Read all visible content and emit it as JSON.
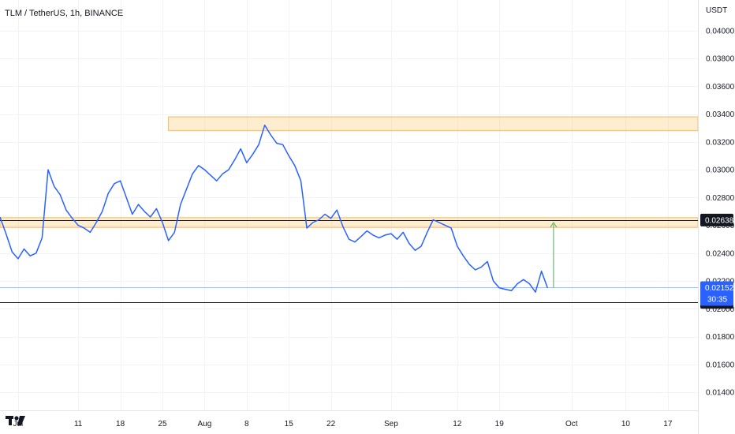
{
  "header": {
    "title": "TLM / TetherUS, 1h, BINANCE"
  },
  "chart_data": {
    "type": "line",
    "title": "TLM / TetherUS, 1h, BINANCE",
    "xlabel": "",
    "ylabel": "USDT",
    "ylim": [
      0.0127,
      0.0422
    ],
    "grid": true,
    "x_ticks": [
      "Jul",
      "11",
      "18",
      "25",
      "Aug",
      "8",
      "15",
      "22",
      "Sep",
      "12",
      "19",
      "Oct",
      "10",
      "17"
    ],
    "y_ticks": [
      "0.04000",
      "0.03800",
      "0.03600",
      "0.03400",
      "0.03200",
      "0.03000",
      "0.02800",
      "0.02600",
      "0.02400",
      "0.02200",
      "0.02000",
      "0.01800",
      "0.01600",
      "0.01400"
    ],
    "y_tick_values": [
      0.04,
      0.038,
      0.036,
      0.034,
      0.032,
      0.03,
      0.028,
      0.026,
      0.024,
      0.022,
      0.02,
      0.018,
      0.016,
      0.014
    ],
    "series": [
      {
        "name": "TLM/USDT",
        "color": "#2962ff",
        "x": [
          "2022-06-28",
          "2022-06-29",
          "2022-06-30",
          "2022-07-01",
          "2022-07-02",
          "2022-07-03",
          "2022-07-04",
          "2022-07-05",
          "2022-07-06",
          "2022-07-07",
          "2022-07-08",
          "2022-07-09",
          "2022-07-10",
          "2022-07-11",
          "2022-07-12",
          "2022-07-13",
          "2022-07-14",
          "2022-07-15",
          "2022-07-16",
          "2022-07-17",
          "2022-07-18",
          "2022-07-19",
          "2022-07-20",
          "2022-07-21",
          "2022-07-22",
          "2022-07-23",
          "2022-07-24",
          "2022-07-25",
          "2022-07-26",
          "2022-07-27",
          "2022-07-28",
          "2022-07-29",
          "2022-07-30",
          "2022-07-31",
          "2022-08-01",
          "2022-08-02",
          "2022-08-03",
          "2022-08-04",
          "2022-08-05",
          "2022-08-06",
          "2022-08-07",
          "2022-08-08",
          "2022-08-09",
          "2022-08-10",
          "2022-08-11",
          "2022-08-12",
          "2022-08-13",
          "2022-08-14",
          "2022-08-15",
          "2022-08-16",
          "2022-08-17",
          "2022-08-18",
          "2022-08-19",
          "2022-08-20",
          "2022-08-21",
          "2022-08-22",
          "2022-08-23",
          "2022-08-24",
          "2022-08-25",
          "2022-08-26",
          "2022-08-27",
          "2022-08-28",
          "2022-08-29",
          "2022-08-30",
          "2022-08-31",
          "2022-09-01",
          "2022-09-02",
          "2022-09-03",
          "2022-09-04",
          "2022-09-05",
          "2022-09-06",
          "2022-09-07",
          "2022-09-08",
          "2022-09-09",
          "2022-09-10",
          "2022-09-11",
          "2022-09-12",
          "2022-09-13",
          "2022-09-14",
          "2022-09-15",
          "2022-09-16",
          "2022-09-17",
          "2022-09-18",
          "2022-09-19",
          "2022-09-20",
          "2022-09-21",
          "2022-09-22",
          "2022-09-23",
          "2022-09-24",
          "2022-09-25",
          "2022-09-26",
          "2022-09-27"
        ],
        "values": [
          0.0266,
          0.0254,
          0.0241,
          0.0236,
          0.0243,
          0.0238,
          0.024,
          0.0251,
          0.03,
          0.0288,
          0.0282,
          0.0271,
          0.0265,
          0.026,
          0.0258,
          0.0255,
          0.0262,
          0.027,
          0.0283,
          0.029,
          0.0292,
          0.028,
          0.0268,
          0.0275,
          0.027,
          0.0266,
          0.0272,
          0.0262,
          0.0249,
          0.0255,
          0.0275,
          0.0286,
          0.0297,
          0.0303,
          0.03,
          0.0296,
          0.0292,
          0.0297,
          0.03,
          0.0307,
          0.0315,
          0.0305,
          0.0311,
          0.0318,
          0.0332,
          0.0325,
          0.0319,
          0.0318,
          0.031,
          0.0303,
          0.0292,
          0.0258,
          0.0262,
          0.0264,
          0.0268,
          0.0265,
          0.0271,
          0.0259,
          0.025,
          0.0248,
          0.0252,
          0.0256,
          0.0253,
          0.0251,
          0.0253,
          0.0254,
          0.025,
          0.0255,
          0.0247,
          0.0242,
          0.0245,
          0.0255,
          0.0264,
          0.0262,
          0.026,
          0.0258,
          0.0245,
          0.0238,
          0.0232,
          0.0228,
          0.023,
          0.0234,
          0.022,
          0.0215,
          0.0214,
          0.0213,
          0.0218,
          0.0221,
          0.0218,
          0.0212,
          0.0227,
          0.0215
        ]
      }
    ],
    "zones": [
      {
        "name": "resistance-zone-upper",
        "y_low": 0.0328,
        "y_high": 0.0338,
        "x_start": "2022-07-26",
        "x_end": "2022-10-22",
        "color": "#ffb74d"
      },
      {
        "name": "resistance-zone-lower",
        "y_low": 0.02585,
        "y_high": 0.02655,
        "x_start": "2022-06-28",
        "x_end": "2022-10-22",
        "color": "#ffb74d"
      }
    ],
    "levels": [
      {
        "value": 0.02638,
        "label": "0.02638",
        "color": "#131722"
      },
      {
        "value": 0.02046,
        "label": "0.02046",
        "color": "#131722"
      }
    ],
    "price_line": {
      "value": 0.02152,
      "color": "#90caf9"
    },
    "current_price": {
      "label": "0.02152",
      "countdown": "30:35",
      "color": "#2962ff"
    },
    "target_arrow": {
      "x": "2022-09-28",
      "from": 0.02152,
      "to": 0.0262,
      "color": "#4caf50"
    }
  }
}
